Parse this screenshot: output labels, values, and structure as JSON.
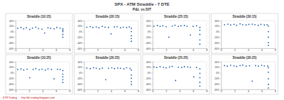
{
  "title": "SPX - ATM Straddle - 7 DTE",
  "subtitle": "P&L vs DIT",
  "footer": [
    {
      "text": "DTR Trading",
      "color": "#c00000"
    },
    {
      "text": "http://dtr-trading.blogspot.com/",
      "color": "#c00000"
    }
  ],
  "chart_data": [
    {
      "type": "scatter",
      "title": "Straddle (10:15)",
      "color": "#1f5fa8",
      "marker": "circle",
      "grid": false,
      "xlim": [
        0,
        8
      ],
      "xticks": [
        0,
        2,
        4,
        6,
        8
      ],
      "ylim": [
        -60,
        40
      ],
      "yticks": [
        {
          "value": -60,
          "label": "-60%"
        },
        {
          "value": -40,
          "label": "-40%"
        },
        {
          "value": -20,
          "label": "-20%"
        },
        {
          "value": 0,
          "label": "0%"
        },
        {
          "value": 20,
          "label": "20%"
        },
        {
          "value": 40,
          "label": "40%"
        }
      ],
      "x": [
        0.3,
        0.8,
        1.2,
        1.6,
        2.1,
        2.5,
        3.0,
        3.4,
        3.9,
        4.3,
        4.8,
        5.2,
        5.7,
        6.1,
        6.6,
        7,
        7,
        7,
        7,
        7
      ],
      "values": [
        12,
        15,
        10,
        14,
        8,
        13,
        16,
        11,
        9,
        -5,
        14,
        12,
        10,
        15,
        13,
        10,
        5,
        0,
        -10,
        -20
      ]
    },
    {
      "type": "scatter",
      "title": "Straddle (20:15)",
      "color": "#1f5fa8",
      "marker": "circle",
      "grid": false,
      "xlim": [
        0,
        8
      ],
      "xticks": [
        0,
        2,
        4,
        6,
        8
      ],
      "ylim": [
        -60,
        40
      ],
      "yticks": [
        {
          "value": -60,
          "label": "-60%"
        },
        {
          "value": -40,
          "label": "-40%"
        },
        {
          "value": -20,
          "label": "-20%"
        },
        {
          "value": 0,
          "label": "0%"
        },
        {
          "value": 20,
          "label": "20%"
        },
        {
          "value": 40,
          "label": "40%"
        }
      ],
      "x": [
        0.4,
        0.9,
        1.3,
        1.8,
        2.2,
        2.7,
        3.1,
        3.6,
        4.0,
        4.5,
        4.9,
        5.4,
        5.8,
        6.3,
        6.7,
        7,
        7,
        7,
        7,
        7
      ],
      "values": [
        16,
        18,
        15,
        17,
        14,
        19,
        16,
        15,
        -8,
        17,
        18,
        14,
        16,
        15,
        17,
        12,
        0,
        -15,
        -25,
        -35
      ]
    },
    {
      "type": "scatter",
      "title": "Straddle (25:15)",
      "color": "#1f5fa8",
      "marker": "circle",
      "grid": false,
      "xlim": [
        0,
        8
      ],
      "xticks": [
        0,
        2,
        4,
        6,
        8
      ],
      "ylim": [
        -60,
        40
      ],
      "yticks": [
        {
          "value": -60,
          "label": "-60%"
        },
        {
          "value": -40,
          "label": "-40%"
        },
        {
          "value": -20,
          "label": "-20%"
        },
        {
          "value": 0,
          "label": "0%"
        },
        {
          "value": 20,
          "label": "20%"
        },
        {
          "value": 40,
          "label": "40%"
        }
      ],
      "x": [
        0.2,
        0.7,
        1.1,
        1.5,
        2.0,
        2.4,
        2.9,
        3.3,
        3.8,
        4.2,
        4.7,
        5.1,
        5.6,
        6.0,
        6.5,
        7,
        7,
        7,
        7,
        7
      ],
      "values": [
        20,
        22,
        19,
        21,
        18,
        -20,
        20,
        23,
        19,
        21,
        22,
        20,
        -12,
        19,
        21,
        15,
        5,
        -10,
        -30,
        -45
      ]
    },
    {
      "type": "scatter",
      "title": "Straddle (30:15)",
      "color": "#1f5fa8",
      "marker": "circle",
      "grid": false,
      "xlim": [
        0,
        8
      ],
      "xticks": [
        0,
        2,
        4,
        6,
        8
      ],
      "ylim": [
        -60,
        40
      ],
      "yticks": [
        {
          "value": -60,
          "label": "-60%"
        },
        {
          "value": -40,
          "label": "-40%"
        },
        {
          "value": -20,
          "label": "-20%"
        },
        {
          "value": 0,
          "label": "0%"
        },
        {
          "value": 20,
          "label": "20%"
        },
        {
          "value": 40,
          "label": "40%"
        }
      ],
      "x": [
        0.5,
        1.0,
        1.4,
        1.9,
        2.3,
        2.8,
        3.2,
        3.7,
        4.1,
        4.6,
        5.0,
        5.5,
        5.9,
        6.4,
        6.8,
        7,
        7,
        7,
        7,
        7
      ],
      "values": [
        25,
        27,
        24,
        26,
        23,
        28,
        25,
        24,
        26,
        27,
        25,
        23,
        26,
        24,
        25,
        20,
        0,
        -20,
        -40,
        -50
      ]
    },
    {
      "type": "scatter",
      "title": "Straddle (10:25)",
      "color": "#1f5fa8",
      "marker": "circle",
      "grid": false,
      "xlim": [
        0,
        8
      ],
      "xticks": [
        0,
        2,
        4,
        6,
        8
      ],
      "ylim": [
        -60,
        40
      ],
      "yticks": [
        {
          "value": -60,
          "label": "-60%"
        },
        {
          "value": -40,
          "label": "-40%"
        },
        {
          "value": -20,
          "label": "-20%"
        },
        {
          "value": 0,
          "label": "0%"
        },
        {
          "value": 20,
          "label": "20%"
        },
        {
          "value": 40,
          "label": "40%"
        }
      ],
      "x": [
        0.3,
        0.8,
        1.2,
        1.7,
        2.1,
        2.6,
        3.0,
        3.5,
        3.9,
        4.4,
        4.8,
        5.3,
        5.7,
        6.2,
        6.6,
        7,
        7,
        7,
        7,
        7
      ],
      "values": [
        12,
        14,
        10,
        13,
        -18,
        12,
        15,
        11,
        13,
        10,
        14,
        12,
        -22,
        13,
        12,
        8,
        -5,
        -15,
        -25,
        -35
      ]
    },
    {
      "type": "scatter",
      "title": "Straddle (20:25)",
      "color": "#1f5fa8",
      "marker": "circle",
      "grid": false,
      "xlim": [
        0,
        8
      ],
      "xticks": [
        0,
        2,
        4,
        6,
        8
      ],
      "ylim": [
        -60,
        40
      ],
      "yticks": [
        {
          "value": -60,
          "label": "-60%"
        },
        {
          "value": -40,
          "label": "-40%"
        },
        {
          "value": -20,
          "label": "-20%"
        },
        {
          "value": 0,
          "label": "0%"
        },
        {
          "value": 20,
          "label": "20%"
        },
        {
          "value": 40,
          "label": "40%"
        }
      ],
      "x": [
        0.4,
        0.9,
        1.4,
        1.8,
        2.3,
        2.7,
        3.2,
        3.6,
        4.1,
        4.5,
        5.0,
        5.4,
        5.9,
        6.3,
        6.8,
        7,
        7,
        7,
        7,
        7
      ],
      "values": [
        17,
        15,
        18,
        16,
        14,
        17,
        -25,
        16,
        18,
        15,
        17,
        16,
        14,
        18,
        16,
        10,
        -8,
        -20,
        -32,
        -42
      ]
    },
    {
      "type": "scatter",
      "title": "Straddle (25:25)",
      "color": "#1f5fa8",
      "marker": "circle",
      "grid": false,
      "xlim": [
        0,
        8
      ],
      "xticks": [
        0,
        2,
        4,
        6,
        8
      ],
      "ylim": [
        -60,
        40
      ],
      "yticks": [
        {
          "value": -60,
          "label": "-60%"
        },
        {
          "value": -40,
          "label": "-40%"
        },
        {
          "value": -20,
          "label": "-20%"
        },
        {
          "value": 0,
          "label": "0%"
        },
        {
          "value": 20,
          "label": "20%"
        },
        {
          "value": 40,
          "label": "40%"
        }
      ],
      "x": [
        0.2,
        0.6,
        1.1,
        1.6,
        2.0,
        2.5,
        2.9,
        3.4,
        3.8,
        4.3,
        4.7,
        5.2,
        5.6,
        6.1,
        6.5,
        7,
        7,
        7,
        7,
        7
      ],
      "values": [
        21,
        19,
        22,
        20,
        18,
        21,
        23,
        -28,
        20,
        19,
        22,
        21,
        20,
        -15,
        19,
        14,
        -2,
        -18,
        -35,
        -48
      ]
    },
    {
      "type": "scatter",
      "title": "Straddle (30:25)",
      "color": "#1f5fa8",
      "marker": "circle",
      "grid": false,
      "xlim": [
        0,
        8
      ],
      "xticks": [
        0,
        2,
        4,
        6,
        8
      ],
      "ylim": [
        -60,
        40
      ],
      "yticks": [
        {
          "value": -60,
          "label": "-60%"
        },
        {
          "value": -40,
          "label": "-40%"
        },
        {
          "value": -20,
          "label": "-20%"
        },
        {
          "value": 0,
          "label": "0%"
        },
        {
          "value": 20,
          "label": "20%"
        },
        {
          "value": 40,
          "label": "40%"
        }
      ],
      "x": [
        0.5,
        0.9,
        1.4,
        1.9,
        2.3,
        2.8,
        3.2,
        3.7,
        4.2,
        4.6,
        5.1,
        5.5,
        6.0,
        6.4,
        6.9,
        7,
        7,
        7,
        7,
        7
      ],
      "values": [
        26,
        24,
        27,
        25,
        23,
        26,
        28,
        24,
        25,
        -30,
        26,
        24,
        27,
        25,
        24,
        18,
        2,
        -22,
        -42,
        -55
      ]
    }
  ]
}
